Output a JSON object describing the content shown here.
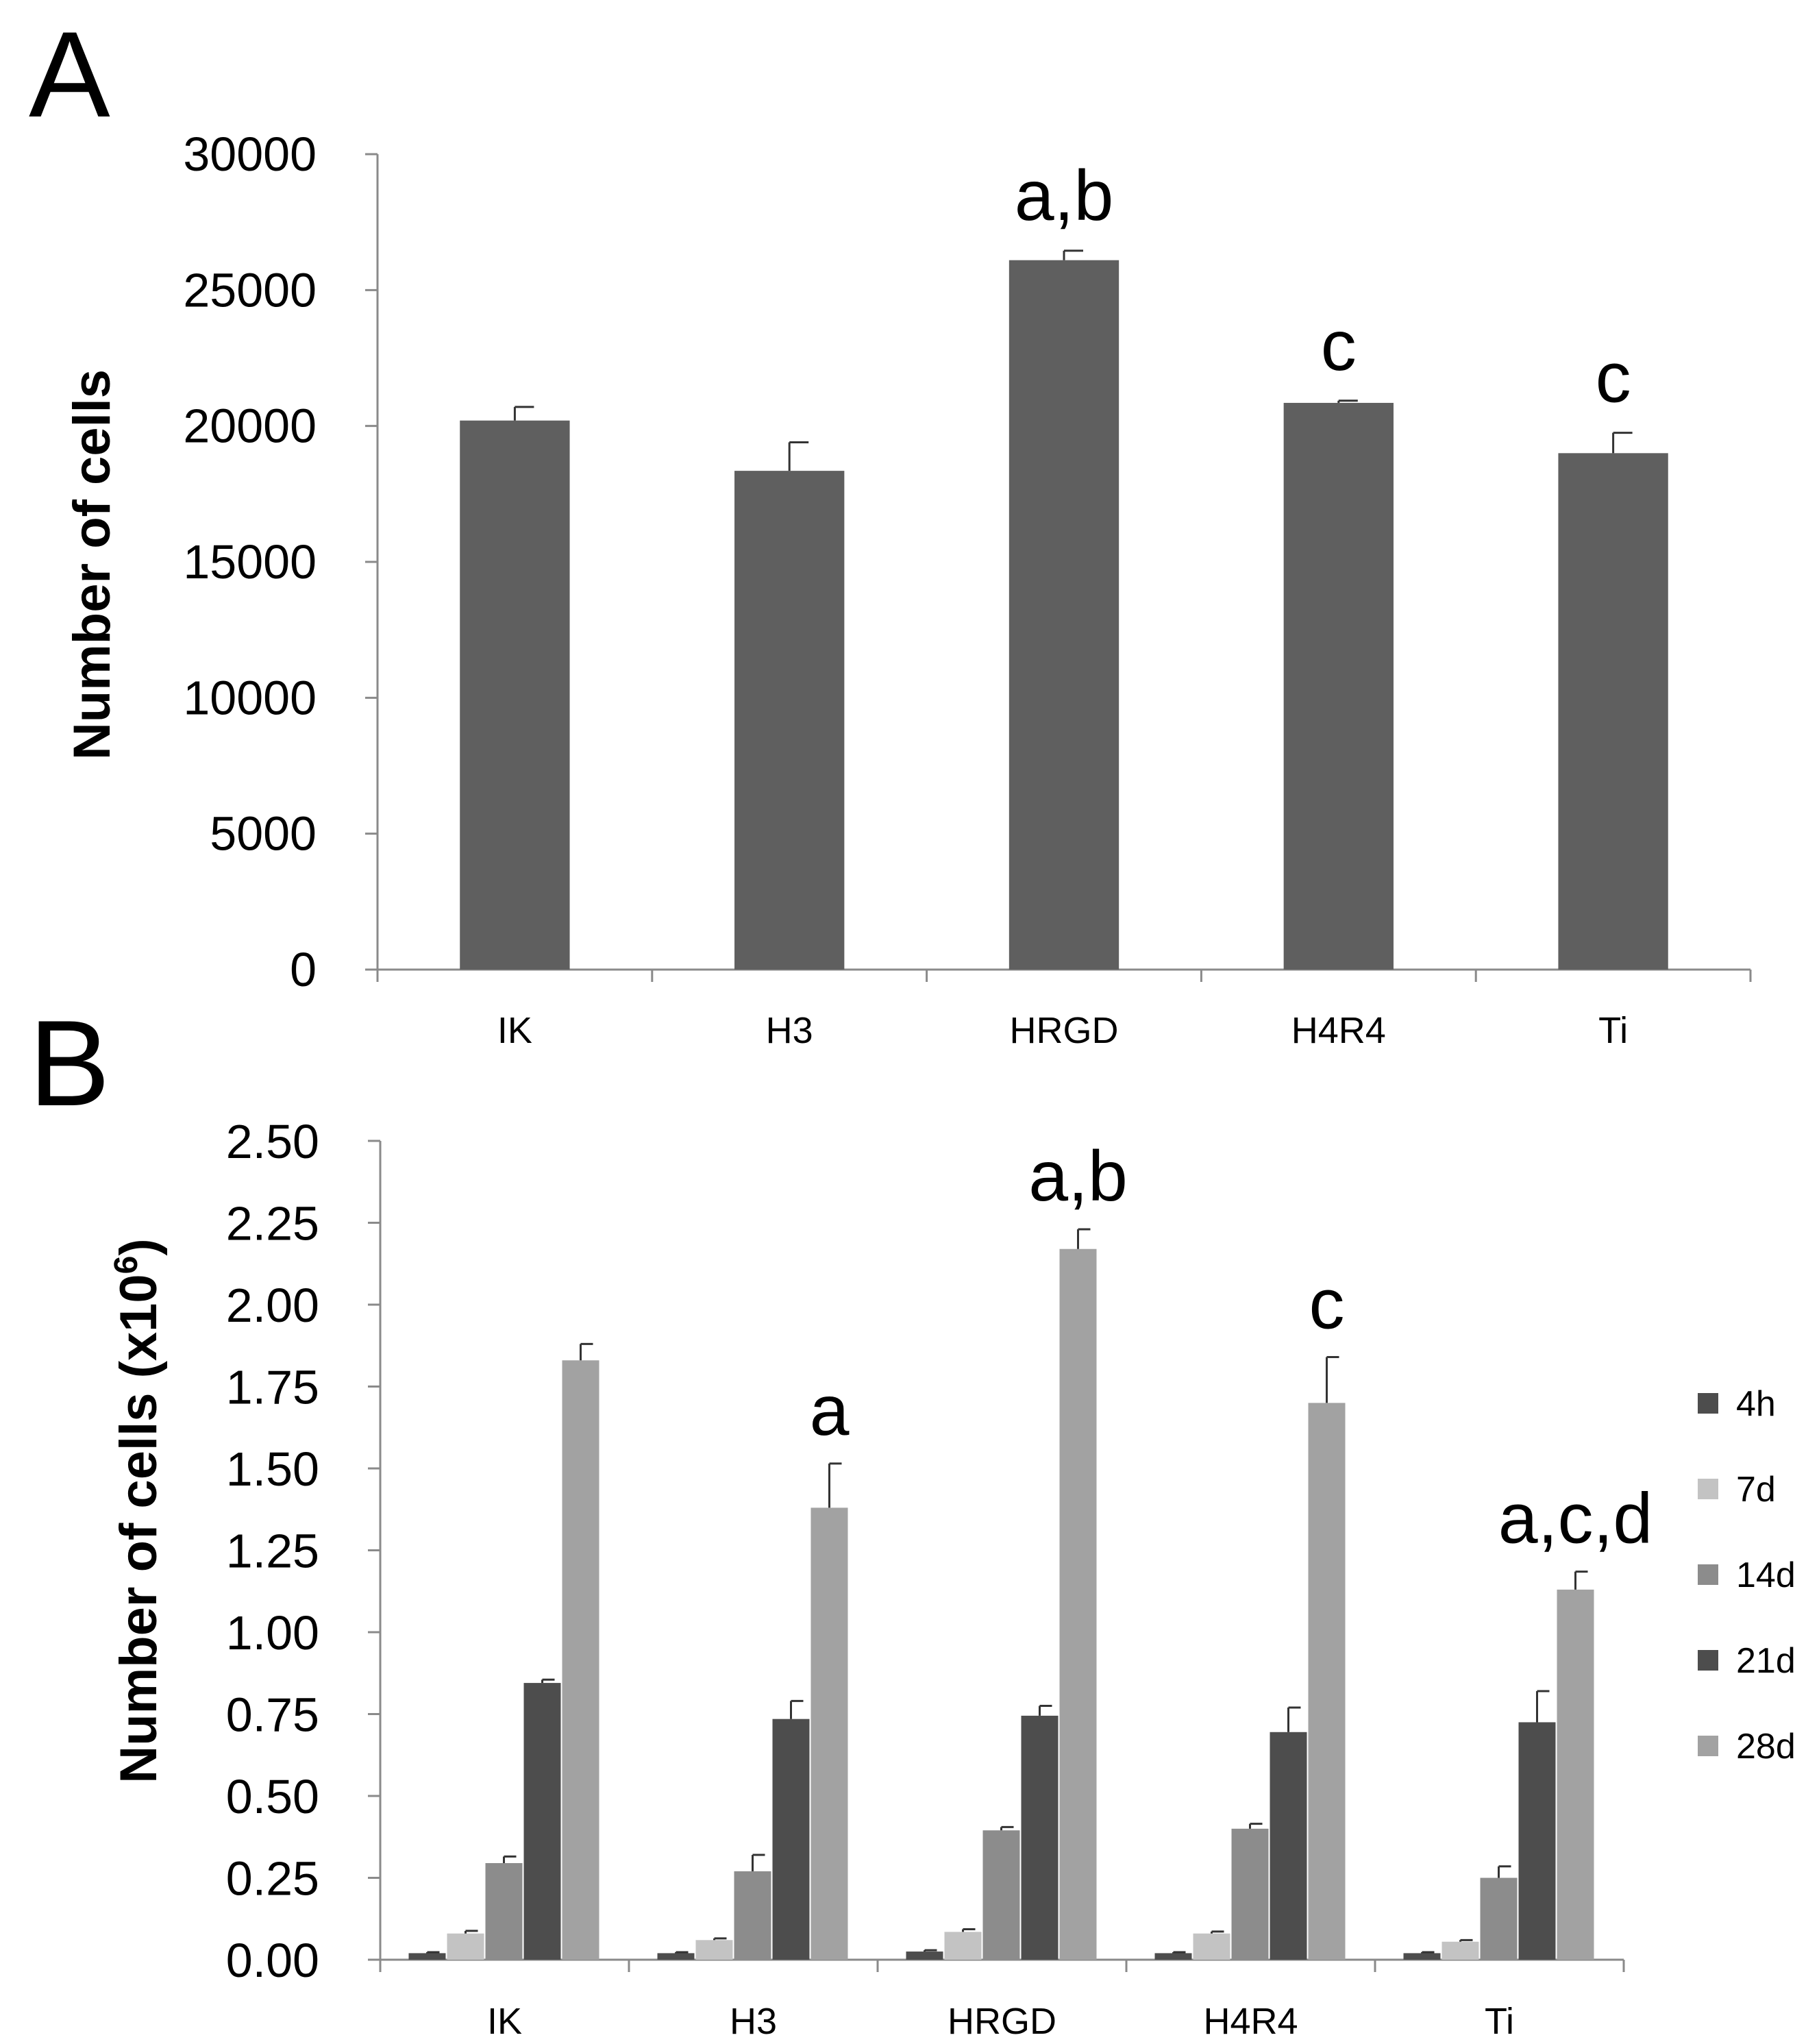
{
  "chart_data": [
    {
      "panel_label": "A",
      "type": "bar",
      "title": "",
      "xlabel": "",
      "ylabel": "Number of cells",
      "ylim": [
        0,
        30000
      ],
      "yticks": [
        "0",
        "5000",
        "10000",
        "15000",
        "20000",
        "25000",
        "30000"
      ],
      "categories": [
        "IK",
        "H3",
        "HRGD",
        "H4R4",
        "Ti"
      ],
      "values": [
        20200,
        18350,
        26100,
        20850,
        19000
      ],
      "errors": [
        500,
        1050,
        350,
        80,
        750
      ],
      "annotations": [
        "",
        "",
        "a,b",
        "c",
        "c"
      ],
      "colors": {
        "bar": "#5f5f5f",
        "axis": "#8a8a8a"
      }
    },
    {
      "panel_label": "B",
      "type": "bar",
      "title": "",
      "xlabel": "",
      "ylabel_main": "Number of cells (x10",
      "ylabel_sup": "6",
      "ylabel_end": ")",
      "ylim": [
        0,
        2.5
      ],
      "yticks": [
        "0.00",
        "0.25",
        "0.50",
        "0.75",
        "1.00",
        "1.25",
        "1.50",
        "1.75",
        "2.00",
        "2.25",
        "2.50"
      ],
      "categories": [
        "IK",
        "H3",
        "HRGD",
        "H4R4",
        "Ti"
      ],
      "series": [
        {
          "name": "4h",
          "color": "#4d4d4d",
          "values": [
            0.02,
            0.02,
            0.025,
            0.02,
            0.02
          ],
          "errors": [
            0.003,
            0.003,
            0.004,
            0.003,
            0.003
          ]
        },
        {
          "name": "7d",
          "color": "#c3c3c3",
          "values": [
            0.08,
            0.06,
            0.085,
            0.08,
            0.055
          ],
          "errors": [
            0.008,
            0.005,
            0.008,
            0.006,
            0.005
          ]
        },
        {
          "name": "14d",
          "color": "#8c8c8c",
          "values": [
            0.295,
            0.27,
            0.395,
            0.4,
            0.25
          ],
          "errors": [
            0.02,
            0.05,
            0.01,
            0.015,
            0.035
          ]
        },
        {
          "name": "21d",
          "color": "#4d4d4d",
          "values": [
            0.845,
            0.735,
            0.745,
            0.695,
            0.725
          ],
          "errors": [
            0.01,
            0.055,
            0.03,
            0.075,
            0.095
          ]
        },
        {
          "name": "28d",
          "color": "#a2a2a2",
          "values": [
            1.83,
            1.38,
            2.17,
            1.7,
            1.13
          ],
          "errors": [
            0.05,
            0.135,
            0.06,
            0.14,
            0.055
          ]
        }
      ],
      "annotations": [
        "",
        "a",
        "a,b",
        "c",
        "a,c,d"
      ],
      "colors": {
        "axis": "#8a8a8a"
      }
    }
  ]
}
